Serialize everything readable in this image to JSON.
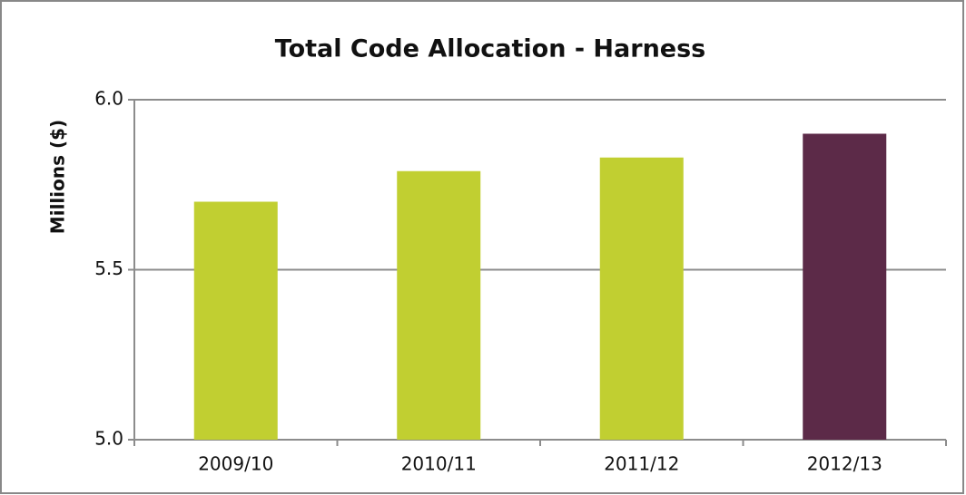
{
  "chart_data": {
    "type": "bar",
    "title": "Total Code Allocation - Harness",
    "y_label": "Millions ($)",
    "categories": [
      "2009/10",
      "2010/11",
      "2011/12",
      "2012/13"
    ],
    "values": [
      5.7,
      5.79,
      5.83,
      5.9
    ],
    "colors": [
      "#c1cf31",
      "#c1cf31",
      "#c1cf31",
      "#5c2a48"
    ],
    "ylim": [
      5,
      6
    ],
    "yticks": [
      {
        "value": 5,
        "label": "5.0"
      },
      5.5,
      {
        "value": 6,
        "label": "6.0"
      }
    ],
    "grid": true
  }
}
